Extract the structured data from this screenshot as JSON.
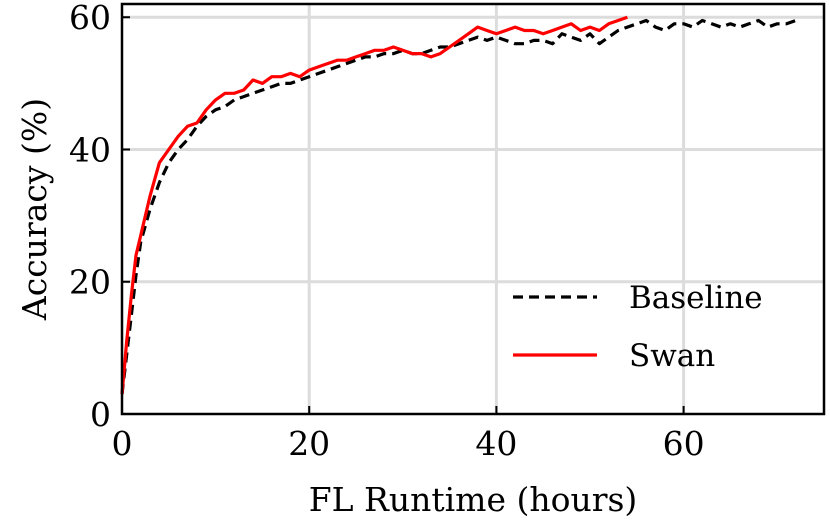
{
  "chart_data": {
    "type": "line",
    "xlabel": "FL Runtime (hours)",
    "ylabel": "Accuracy (%)",
    "xlim": [
      0,
      75
    ],
    "ylim": [
      0,
      62
    ],
    "x_ticks": [
      0,
      20,
      40,
      60
    ],
    "x_tick_labels": [
      "0",
      "20",
      "40",
      "60"
    ],
    "y_ticks": [
      0,
      20,
      40,
      60
    ],
    "y_tick_labels": [
      "0",
      "20",
      "40",
      "60"
    ],
    "grid": true,
    "legend_position": "lower-right",
    "series": [
      {
        "name": "Baseline",
        "color": "#000000",
        "dash": "dashed",
        "x": [
          0,
          0.5,
          1,
          1.5,
          2,
          3,
          4,
          5,
          6,
          7,
          8,
          9,
          10,
          11,
          12,
          13,
          14,
          15,
          16,
          17,
          18,
          19,
          20,
          21,
          22,
          23,
          24,
          25,
          26,
          27,
          28,
          29,
          30,
          31,
          32,
          33,
          34,
          35,
          36,
          37,
          38,
          39,
          40,
          41,
          42,
          43,
          44,
          45,
          46,
          47,
          48,
          49,
          50,
          51,
          52,
          53,
          54,
          55,
          56,
          57,
          58,
          59,
          60,
          61,
          62,
          63,
          64,
          65,
          66,
          67,
          68,
          69,
          70,
          71,
          72
        ],
        "y": [
          3,
          9,
          15,
          21,
          26,
          31,
          35,
          38,
          40,
          41.5,
          43.5,
          45,
          46,
          46.5,
          47.5,
          48,
          48.5,
          49,
          49.5,
          50,
          50,
          50.5,
          51,
          51.5,
          52,
          52.5,
          53,
          53.5,
          54,
          54,
          54.5,
          54.5,
          55,
          54.5,
          54.5,
          55,
          55.5,
          55.5,
          56,
          56.5,
          57,
          56.5,
          57,
          56.5,
          56,
          56,
          56.5,
          56.5,
          56,
          57.5,
          57,
          56.5,
          57.5,
          56,
          57,
          58,
          58.5,
          59,
          59.5,
          58.5,
          58,
          59,
          59,
          58.5,
          59.5,
          59,
          58.5,
          59,
          58.5,
          59,
          59.5,
          58.5,
          59,
          59,
          59.5
        ]
      },
      {
        "name": "Swan",
        "color": "#ff0000",
        "dash": "solid",
        "x": [
          0,
          0.5,
          1,
          1.5,
          2,
          3,
          4,
          5,
          6,
          7,
          8,
          9,
          10,
          11,
          12,
          13,
          14,
          15,
          16,
          17,
          18,
          19,
          20,
          21,
          22,
          23,
          24,
          25,
          26,
          27,
          28,
          29,
          30,
          31,
          32,
          33,
          34,
          35,
          36,
          37,
          38,
          39,
          40,
          41,
          42,
          43,
          44,
          45,
          46,
          47,
          48,
          49,
          50,
          51,
          52,
          53,
          54
        ],
        "y": [
          3,
          11,
          18,
          24,
          27,
          33,
          38,
          40,
          42,
          43.5,
          44,
          46,
          47.5,
          48.5,
          48.5,
          49,
          50.5,
          50,
          51,
          51,
          51.5,
          51,
          52,
          52.5,
          53,
          53.5,
          53.5,
          54,
          54.5,
          55,
          55,
          55.5,
          55,
          54.5,
          54.5,
          54,
          54.5,
          55.5,
          56.5,
          57.5,
          58.5,
          58,
          57.5,
          58,
          58.5,
          58,
          58,
          57.5,
          58,
          58.5,
          59,
          58,
          58.5,
          58,
          59,
          59.5,
          60
        ]
      }
    ]
  }
}
